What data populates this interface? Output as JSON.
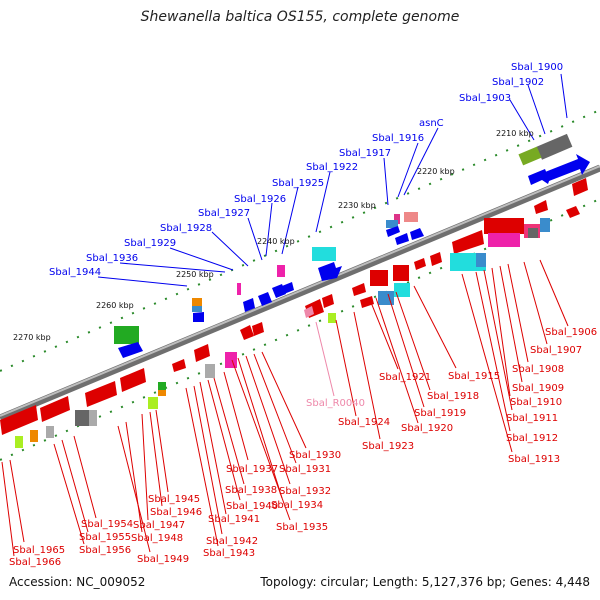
{
  "title": "Shewanella baltica OS155, complete genome",
  "footer": {
    "accession": "Accession: NC_009052",
    "topology": "Topology: circular; Length: 5,127,376 bp; Genes: 4,448"
  },
  "colors": {
    "forward_label": "#0000ee",
    "reverse_label": "#dd0000",
    "rna_label": "#ee88aa",
    "backbone": "#8a8a8a"
  },
  "ticks": [
    "2210 kbp",
    "2220 kbp",
    "2230 kbp",
    "2240 kbp",
    "2250 kbp",
    "2260 kbp",
    "2270 kbp"
  ],
  "labels_forward": [
    "Sbal_1900",
    "Sbal_1902",
    "Sbal_1903",
    "asnC",
    "Sbal_1916",
    "Sbal_1917",
    "Sbal_1922",
    "Sbal_1925",
    "Sbal_1926",
    "Sbal_1927",
    "Sbal_1928",
    "Sbal_1929",
    "Sbal_1936",
    "Sbal_1944"
  ],
  "labels_reverse": [
    "Sbal_1906",
    "Sbal_1907",
    "Sbal_1908",
    "Sbal_1909",
    "Sbal_1910",
    "Sbal_1911",
    "Sbal_1912",
    "Sbal_1913",
    "Sbal_1915",
    "Sbal_1918",
    "Sbal_1919",
    "Sbal_1920",
    "Sbal_1921",
    "Sbal_1923",
    "Sbal_1924",
    "Sbal_1930",
    "Sbal_1931",
    "Sbal_1932",
    "Sbal_1934",
    "Sbal_1935",
    "Sbal_1937",
    "Sbal_1938",
    "Sbal_1940",
    "Sbal_1941",
    "Sbal_1942",
    "Sbal_1943",
    "Sbal_1945",
    "Sbal_1946",
    "Sbal_1947",
    "Sbal_1948",
    "Sbal_1949",
    "Sbal_1954",
    "Sbal_1955",
    "Sbal_1956",
    "Sbal_1965",
    "Sbal_1966"
  ],
  "labels_rna": [
    "Sbal_R0040"
  ]
}
